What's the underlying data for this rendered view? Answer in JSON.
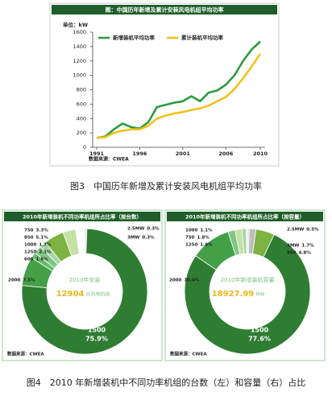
{
  "chart_data": [
    {
      "type": "line",
      "title": "图：中国历年新增及累计安装风电机组平均功率",
      "unit_label": "单位：kW",
      "x": [
        1991,
        1992,
        1993,
        1994,
        1995,
        1996,
        1997,
        1998,
        1999,
        2000,
        2001,
        2002,
        2003,
        2004,
        2005,
        2006,
        2007,
        2008,
        2009,
        2010
      ],
      "series": [
        {
          "name": "新增装机平均功率",
          "color": "#2e9a3e",
          "values": [
            130,
            150,
            250,
            330,
            280,
            260,
            350,
            560,
            590,
            620,
            640,
            710,
            640,
            760,
            790,
            870,
            1000,
            1200,
            1360,
            1470
          ]
        },
        {
          "name": "累计装机平均功率",
          "color": "#f2c21b",
          "values": [
            130,
            140,
            200,
            230,
            250,
            250,
            300,
            400,
            440,
            470,
            490,
            520,
            540,
            580,
            640,
            700,
            810,
            960,
            1120,
            1300
          ]
        }
      ],
      "xlim": [
        1991,
        2010
      ],
      "xticks": [
        1991,
        1996,
        2001,
        2006,
        2010
      ],
      "ylim": [
        0,
        1600
      ],
      "yticks": [
        0,
        200,
        400,
        600,
        800,
        1000,
        1200,
        1400,
        1600
      ],
      "source": "数据来源：CWEA"
    },
    {
      "type": "pie",
      "title": "2010年新增装机不同功率机组所占比率（按台数）",
      "categories": [
        "2.5MW",
        "3MW",
        "1500",
        "2000",
        "600",
        "1250",
        "1000",
        "850",
        "750"
      ],
      "values": [
        0.3,
        0.3,
        75.9,
        7.5,
        1.5,
        2.1,
        1.7,
        5.1,
        3.3
      ],
      "value_labels": [
        "0.3%",
        "0.3%",
        "75.9%",
        "7.5%",
        "1.5%",
        "2.1%",
        "1.7%",
        "5.1%",
        "3.3%"
      ],
      "colors": [
        "#d9d9d9",
        "#bdbdbd",
        "#2e7d32",
        "#43a047",
        "#66bb6a",
        "#81c784",
        "#a5d6a7",
        "#7cb342",
        "#c5e1a5"
      ],
      "center_text": "2010年安装",
      "center_value": "12904",
      "center_unit": "台风电机组",
      "source": "数据来源：CWEA"
    },
    {
      "type": "pie",
      "title": "2010年新增装机不同功率机组所占比率（按容量）",
      "categories": [
        "2.5MW",
        "3MW",
        "850",
        "1500",
        "2000",
        "1250",
        "750",
        "1000"
      ],
      "values": [
        0.5,
        1.7,
        4.8,
        77.6,
        10.4,
        1.8,
        1.8,
        1.1
      ],
      "value_labels": [
        "0.5%",
        "1.7%",
        "4.8%",
        "77.6%",
        "10.4%",
        "1.8%",
        "1.8%",
        "1.1%"
      ],
      "colors": [
        "#d9d9d9",
        "#bdbdbd",
        "#7cb342",
        "#2e7d32",
        "#43a047",
        "#81c784",
        "#c5e1a5",
        "#a5d6a7"
      ],
      "center_text": "2010年新增装机容量",
      "center_value": "18927.99",
      "center_unit": "MW",
      "source": "数据来源：CWEA"
    }
  ],
  "captions": [
    "图3　中国历年新增及累计安装风电机组平均功率",
    "图4　2010 年新增装机中不同功率机组的台数（左）和容量（右）占比"
  ]
}
